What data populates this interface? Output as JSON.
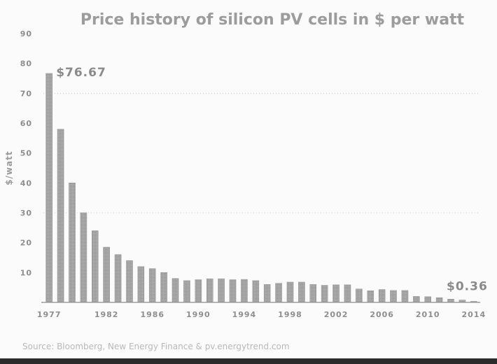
{
  "chart_data": {
    "type": "bar",
    "title": "Price history of silicon PV cells in $ per watt",
    "ylabel": "$/watt",
    "xlabel": "",
    "ylim": [
      0,
      90
    ],
    "yticks": [
      90,
      80,
      70,
      60,
      50,
      40,
      30,
      20,
      10
    ],
    "categories": [
      "1977",
      "1978",
      "1979",
      "1980",
      "1981",
      "1982",
      "1983",
      "1984",
      "1985",
      "1986",
      "1987",
      "1988",
      "1989",
      "1990",
      "1991",
      "1992",
      "1993",
      "1994",
      "1995",
      "1996",
      "1997",
      "1998",
      "1999",
      "2000",
      "2001",
      "2002",
      "2003",
      "2004",
      "2005",
      "2006",
      "2007",
      "2008",
      "2009",
      "2010",
      "2011",
      "2012",
      "2013",
      "2014"
    ],
    "xtick_labels": [
      "1977",
      "1982",
      "1986",
      "1990",
      "1994",
      "1998",
      "2002",
      "2006",
      "2010",
      "2014"
    ],
    "values": [
      76.67,
      58,
      40,
      30,
      24,
      18.5,
      16,
      14,
      12,
      11.3,
      10,
      8,
      7.3,
      7.6,
      7.9,
      7.9,
      7.6,
      7.7,
      7.3,
      6,
      6.4,
      6.8,
      6.8,
      6,
      5.7,
      5.9,
      5.9,
      4.5,
      3.9,
      4.3,
      4,
      4,
      2,
      1.9,
      1.6,
      1.1,
      0.8,
      0.36
    ],
    "grid": "dotted horizontal at 30 and 70",
    "annotations": [
      {
        "text": "$76.67",
        "category": "1977"
      },
      {
        "text": "$0.36",
        "category": "2014"
      }
    ]
  },
  "source": "Source: Bloomberg, New Energy Finance & pv.energytrend.com",
  "colors": {
    "bar": "#9a9a9a",
    "title": "#9c9c9c",
    "background": "#fbfbfb",
    "bottom_strip": "#2b2b2b"
  }
}
